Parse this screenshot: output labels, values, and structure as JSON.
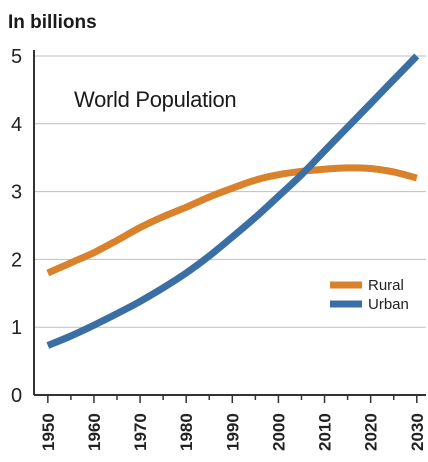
{
  "chart_data": {
    "type": "line",
    "title": "World Population",
    "unit_label": "In billions",
    "xlabel": "",
    "ylabel": "",
    "x": [
      1950,
      1955,
      1960,
      1965,
      1970,
      1975,
      1980,
      1985,
      1990,
      1995,
      2000,
      2005,
      2010,
      2015,
      2020,
      2025,
      2030
    ],
    "xlim": [
      1947,
      2032
    ],
    "ylim": [
      0,
      5
    ],
    "x_ticks": [
      "1950",
      "1960",
      "1970",
      "1980",
      "1990",
      "2000",
      "2010",
      "2020",
      "2030"
    ],
    "y_ticks": [
      "0",
      "1",
      "2",
      "3",
      "4",
      "5"
    ],
    "grid": "horizontal",
    "legend_position": "right",
    "series": [
      {
        "name": "Rural",
        "color": "#d9822b",
        "values": [
          1.8,
          1.95,
          2.1,
          2.28,
          2.47,
          2.63,
          2.77,
          2.92,
          3.05,
          3.17,
          3.25,
          3.3,
          3.33,
          3.35,
          3.34,
          3.29,
          3.2
        ]
      },
      {
        "name": "Urban",
        "color": "#3a6fa5",
        "values": [
          0.73,
          0.87,
          1.03,
          1.2,
          1.38,
          1.58,
          1.8,
          2.05,
          2.33,
          2.62,
          2.93,
          3.25,
          3.6,
          3.95,
          4.3,
          4.65,
          5.0
        ]
      }
    ]
  }
}
